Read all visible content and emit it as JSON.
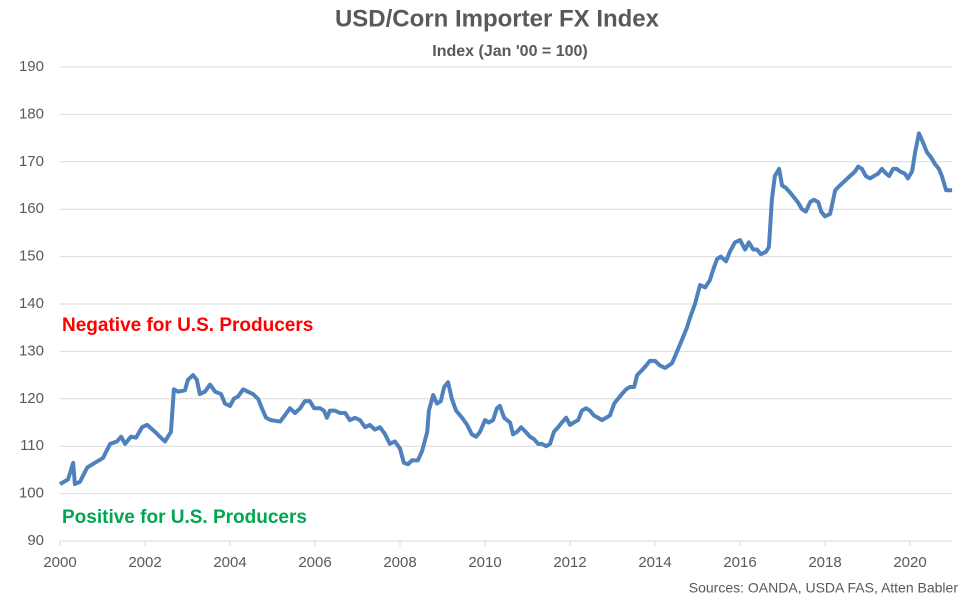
{
  "chart_data": {
    "type": "line",
    "title": "USD/Corn Importer FX Index",
    "subtitle": "Index (Jan '00 = 100)",
    "source": "Sources: OANDA, USDA FAS, Atten Babler",
    "annotations": [
      {
        "text": "Negative for U.S. Producers",
        "color": "#ff0000"
      },
      {
        "text": "Positive for U.S. Producers",
        "color": "#00a651"
      }
    ],
    "x": [
      2000.0,
      2000.19,
      2000.31,
      2000.35,
      2000.47,
      2000.64,
      2000.82,
      2001.01,
      2001.18,
      2001.34,
      2001.44,
      2001.53,
      2001.67,
      2001.79,
      2001.93,
      2002.05,
      2002.24,
      2002.35,
      2002.47,
      2002.61,
      2002.68,
      2002.78,
      2002.94,
      2003.01,
      2003.13,
      2003.22,
      2003.29,
      2003.41,
      2003.53,
      2003.65,
      2003.79,
      2003.88,
      2004.0,
      2004.09,
      2004.19,
      2004.31,
      2004.42,
      2004.54,
      2004.66,
      2004.75,
      2004.85,
      2004.96,
      2005.18,
      2005.29,
      2005.41,
      2005.53,
      2005.65,
      2005.76,
      2005.88,
      2005.98,
      2006.12,
      2006.21,
      2006.28,
      2006.35,
      2006.47,
      2006.59,
      2006.71,
      2006.82,
      2006.94,
      2007.06,
      2007.18,
      2007.29,
      2007.41,
      2007.53,
      2007.65,
      2007.76,
      2007.88,
      2008.0,
      2008.09,
      2008.19,
      2008.28,
      2008.42,
      2008.52,
      2008.64,
      2008.68,
      2008.78,
      2008.87,
      2008.96,
      2009.04,
      2009.13,
      2009.22,
      2009.32,
      2009.46,
      2009.58,
      2009.69,
      2009.79,
      2009.88,
      2010.0,
      2010.09,
      2010.19,
      2010.28,
      2010.35,
      2010.45,
      2010.59,
      2010.66,
      2010.75,
      2010.85,
      2010.96,
      2011.06,
      2011.15,
      2011.25,
      2011.34,
      2011.44,
      2011.53,
      2011.62,
      2011.72,
      2011.81,
      2011.91,
      2012.0,
      2012.09,
      2012.19,
      2012.28,
      2012.38,
      2012.47,
      2012.56,
      2012.66,
      2012.75,
      2012.85,
      2012.94,
      2013.04,
      2013.13,
      2013.22,
      2013.32,
      2013.41,
      2013.51,
      2013.58,
      2013.69,
      2013.79,
      2013.88,
      2014.0,
      2014.12,
      2014.24,
      2014.4,
      2014.52,
      2014.66,
      2014.75,
      2014.82,
      2014.94,
      2015.06,
      2015.18,
      2015.29,
      2015.36,
      2015.46,
      2015.55,
      2015.67,
      2015.76,
      2015.88,
      2016.0,
      2016.12,
      2016.21,
      2016.31,
      2016.4,
      2016.49,
      2016.61,
      2016.68,
      2016.75,
      2016.82,
      2016.92,
      2016.99,
      2017.08,
      2017.18,
      2017.27,
      2017.36,
      2017.46,
      2017.55,
      2017.65,
      2017.74,
      2017.84,
      2017.91,
      2018.0,
      2018.12,
      2018.24,
      2018.35,
      2018.47,
      2018.59,
      2018.71,
      2018.78,
      2018.87,
      2018.96,
      2019.06,
      2019.15,
      2019.25,
      2019.34,
      2019.44,
      2019.51,
      2019.6,
      2019.69,
      2019.76,
      2019.88,
      2019.95,
      2020.05,
      2020.12,
      2020.21,
      2020.31,
      2020.4,
      2020.49,
      2020.59,
      2020.68,
      2020.75,
      2020.85,
      2020.99
    ],
    "series": [
      {
        "name": "USD/Corn Importer FX Index",
        "color": "#4f81bd",
        "values": [
          102,
          103,
          106.5,
          102,
          102.5,
          105.5,
          106.5,
          107.5,
          110.5,
          111,
          112,
          110.5,
          112,
          111.8,
          114,
          114.5,
          113,
          112,
          111,
          113,
          122,
          121.5,
          121.8,
          124,
          125,
          124,
          121,
          121.5,
          123,
          121.5,
          121,
          119,
          118.5,
          120,
          120.5,
          122,
          121.5,
          121,
          120,
          118,
          116,
          115.5,
          115.2,
          116.5,
          118,
          117,
          118,
          119.5,
          119.5,
          118,
          118,
          117.5,
          116,
          117.5,
          117.5,
          117,
          117,
          115.5,
          116,
          115.5,
          114,
          114.5,
          113.5,
          114,
          112.5,
          110.5,
          111,
          109.5,
          106.5,
          106.2,
          107,
          107,
          109,
          113,
          117.5,
          120.8,
          119,
          119.5,
          122.5,
          123.5,
          120,
          117.5,
          116,
          114.5,
          112.5,
          112,
          113,
          115.5,
          115,
          115.5,
          118,
          118.5,
          116,
          115,
          112.5,
          113,
          114,
          113,
          112,
          111.5,
          110.5,
          110.5,
          110,
          110.5,
          113,
          114,
          115,
          116,
          114.5,
          115,
          115.5,
          117.5,
          118,
          117.5,
          116.5,
          116,
          115.5,
          116,
          116.5,
          119,
          120,
          121,
          122,
          122.5,
          122.5,
          125,
          126,
          127,
          128,
          128,
          127,
          126.5,
          127.5,
          130,
          133,
          135,
          137,
          140,
          144,
          143.5,
          145,
          147,
          149.5,
          150,
          149,
          151,
          153,
          153.5,
          151.5,
          153,
          151.5,
          151.5,
          150.5,
          151,
          152,
          162,
          167,
          168.5,
          165,
          164.5,
          163.5,
          162.5,
          161.5,
          160,
          159.5,
          161.5,
          162,
          161.5,
          159.5,
          158.5,
          159,
          164,
          165,
          166,
          167,
          168,
          169,
          168.5,
          167,
          166.5,
          167,
          167.5,
          168.5,
          167.5,
          167,
          168.5,
          168.5,
          168,
          167.5,
          166.5,
          168,
          172,
          176,
          174,
          172,
          171,
          169.5,
          168.5,
          167,
          164,
          164
        ]
      }
    ],
    "xlim": [
      2000,
      2021
    ],
    "xticks": [
      2000,
      2002,
      2004,
      2006,
      2008,
      2010,
      2012,
      2014,
      2016,
      2018,
      2020
    ],
    "ylim": [
      90,
      190
    ],
    "yticks": [
      90,
      100,
      110,
      120,
      130,
      140,
      150,
      160,
      170,
      180,
      190
    ],
    "grid": true
  }
}
